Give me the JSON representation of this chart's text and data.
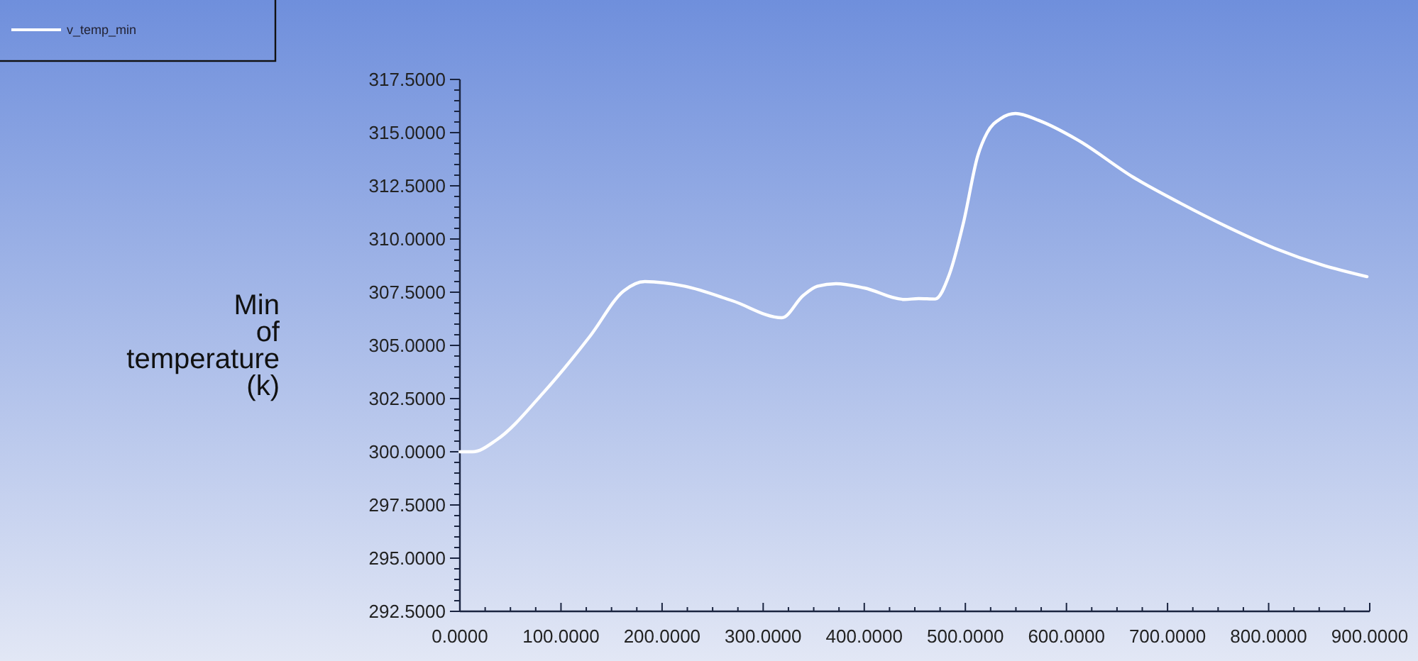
{
  "chart_data": {
    "type": "line",
    "ylabel": "Min of temperature (k)",
    "legend": "top left",
    "marker": "none",
    "line_style": "solid",
    "grid": false,
    "x": [
      0,
      12.6,
      36,
      82.6,
      129,
      162,
      183,
      222.7,
      269.4,
      318.5,
      339.5,
      353.5,
      372,
      400,
      439.8,
      453.8,
      470.2,
      484.2,
      498.2,
      512.2,
      521.6,
      535.6,
      549.6,
      572.8,
      610.2,
      666.2,
      712.9,
      759.6,
      806.3,
      853,
      897.3
    ],
    "series": [
      {
        "name": "v_temp_min",
        "color": "#ffffff",
        "values": [
          300.0,
          300.0,
          300.55,
          302.78,
          305.45,
          307.56,
          308.0,
          307.78,
          307.1,
          306.3,
          307.34,
          307.78,
          307.9,
          307.7,
          307.16,
          307.2,
          307.18,
          308.34,
          310.78,
          313.9,
          315.0,
          315.68,
          315.9,
          315.57,
          314.68,
          312.9,
          311.68,
          310.56,
          309.56,
          308.78,
          308.23
        ]
      }
    ],
    "xlim": [
      0,
      900
    ],
    "ylim": [
      292.5,
      317.5
    ],
    "xticks": [
      {
        "value": 0,
        "label": "0.0000"
      },
      {
        "value": 25,
        "label": null
      },
      {
        "value": 50,
        "label": null
      },
      {
        "value": 75,
        "label": null
      },
      {
        "value": 100,
        "label": "100.0000"
      },
      {
        "value": 125,
        "label": null
      },
      {
        "value": 150,
        "label": null
      },
      {
        "value": 175,
        "label": null
      },
      {
        "value": 200,
        "label": "200.0000"
      },
      {
        "value": 225,
        "label": null
      },
      {
        "value": 250,
        "label": null
      },
      {
        "value": 275,
        "label": null
      },
      {
        "value": 300,
        "label": "300.0000"
      },
      {
        "value": 325,
        "label": null
      },
      {
        "value": 350,
        "label": null
      },
      {
        "value": 375,
        "label": null
      },
      {
        "value": 400,
        "label": "400.0000"
      },
      {
        "value": 425,
        "label": null
      },
      {
        "value": 450,
        "label": null
      },
      {
        "value": 475,
        "label": null
      },
      {
        "value": 500,
        "label": "500.0000"
      },
      {
        "value": 525,
        "label": null
      },
      {
        "value": 550,
        "label": null
      },
      {
        "value": 575,
        "label": null
      },
      {
        "value": 600,
        "label": "600.0000"
      },
      {
        "value": 625,
        "label": null
      },
      {
        "value": 650,
        "label": null
      },
      {
        "value": 675,
        "label": null
      },
      {
        "value": 700,
        "label": "700.0000"
      },
      {
        "value": 725,
        "label": null
      },
      {
        "value": 750,
        "label": null
      },
      {
        "value": 775,
        "label": null
      },
      {
        "value": 800,
        "label": "800.0000"
      },
      {
        "value": 825,
        "label": null
      },
      {
        "value": 850,
        "label": null
      },
      {
        "value": 875,
        "label": null
      },
      {
        "value": 900,
        "label": "900.0000"
      }
    ],
    "yticks": [
      {
        "value": 292.5,
        "label": "292.5000"
      },
      {
        "value": 293,
        "label": null
      },
      {
        "value": 293.5,
        "label": null
      },
      {
        "value": 294,
        "label": null
      },
      {
        "value": 294.5,
        "label": null
      },
      {
        "value": 295,
        "label": "295.0000"
      },
      {
        "value": 295.5,
        "label": null
      },
      {
        "value": 296,
        "label": null
      },
      {
        "value": 296.5,
        "label": null
      },
      {
        "value": 297,
        "label": null
      },
      {
        "value": 297.5,
        "label": "297.5000"
      },
      {
        "value": 298,
        "label": null
      },
      {
        "value": 298.5,
        "label": null
      },
      {
        "value": 299,
        "label": null
      },
      {
        "value": 299.5,
        "label": null
      },
      {
        "value": 300,
        "label": "300.0000"
      },
      {
        "value": 300.5,
        "label": null
      },
      {
        "value": 301,
        "label": null
      },
      {
        "value": 301.5,
        "label": null
      },
      {
        "value": 302,
        "label": null
      },
      {
        "value": 302.5,
        "label": "302.5000"
      },
      {
        "value": 303,
        "label": null
      },
      {
        "value": 303.5,
        "label": null
      },
      {
        "value": 304,
        "label": null
      },
      {
        "value": 304.5,
        "label": null
      },
      {
        "value": 305,
        "label": "305.0000"
      },
      {
        "value": 305.5,
        "label": null
      },
      {
        "value": 306,
        "label": null
      },
      {
        "value": 306.5,
        "label": null
      },
      {
        "value": 307,
        "label": null
      },
      {
        "value": 307.5,
        "label": "307.5000"
      },
      {
        "value": 308,
        "label": null
      },
      {
        "value": 308.5,
        "label": null
      },
      {
        "value": 309,
        "label": null
      },
      {
        "value": 309.5,
        "label": null
      },
      {
        "value": 310,
        "label": "310.0000"
      },
      {
        "value": 310.5,
        "label": null
      },
      {
        "value": 311,
        "label": null
      },
      {
        "value": 311.5,
        "label": null
      },
      {
        "value": 312,
        "label": null
      },
      {
        "value": 312.5,
        "label": "312.5000"
      },
      {
        "value": 313,
        "label": null
      },
      {
        "value": 313.5,
        "label": null
      },
      {
        "value": 314,
        "label": null
      },
      {
        "value": 314.5,
        "label": null
      },
      {
        "value": 315,
        "label": "315.0000"
      },
      {
        "value": 315.5,
        "label": null
      },
      {
        "value": 316,
        "label": null
      },
      {
        "value": 316.5,
        "label": null
      },
      {
        "value": 317,
        "label": null
      },
      {
        "value": 317.5,
        "label": "317.5000"
      }
    ]
  }
}
